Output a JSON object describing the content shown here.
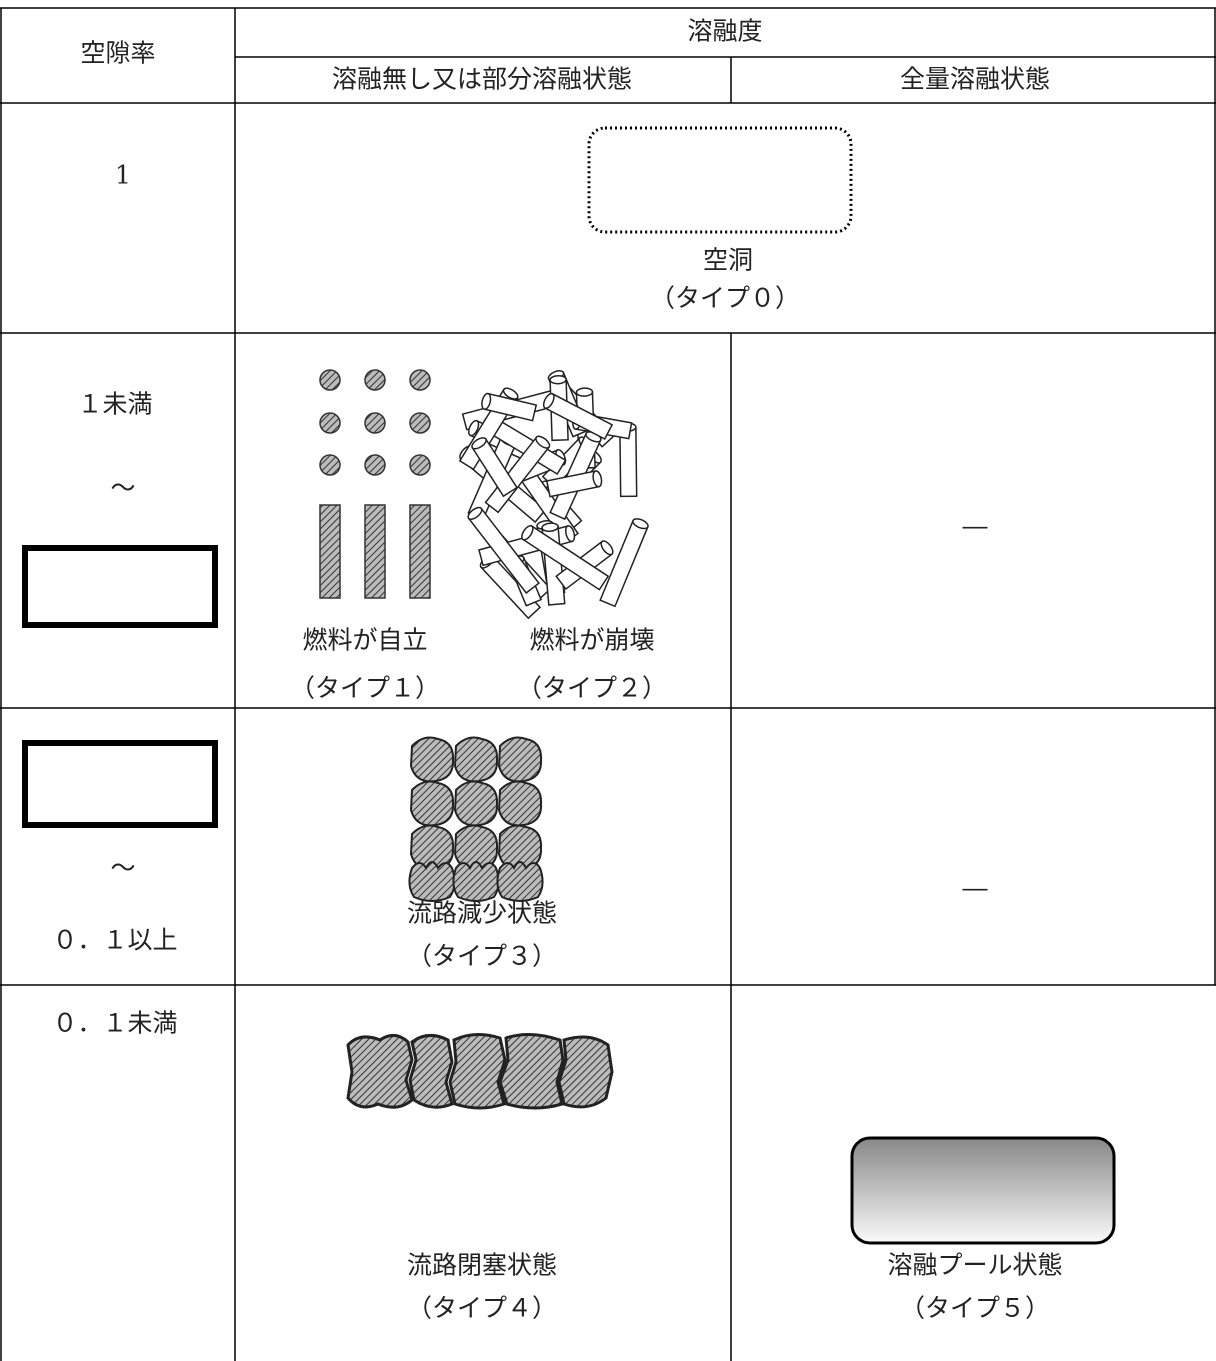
{
  "header": {
    "void_ratio": "空隙率",
    "melting_degree": "溶融度",
    "partial": "溶融無し又は部分溶融状態",
    "full": "全量溶融状態"
  },
  "rows": [
    {
      "void_ratio": [
        "1"
      ],
      "merged": {
        "label": "空洞",
        "type": "（タイプ０）"
      }
    },
    {
      "void_ratio": [
        "１未満",
        "～"
      ],
      "partial": [
        {
          "label": "燃料が自立",
          "type": "（タイプ１）"
        },
        {
          "label": "燃料が崩壊",
          "type": "（タイプ２）"
        }
      ],
      "full": "―"
    },
    {
      "void_ratio": [
        "～",
        "０．１以上"
      ],
      "partial": [
        {
          "label": "流路減少状態",
          "type": "（タイプ３）"
        }
      ],
      "full": "―"
    },
    {
      "void_ratio": [
        "０．１未満"
      ],
      "partial": [
        {
          "label": "流路閉塞状態",
          "type": "（タイプ４）"
        }
      ],
      "full": {
        "label": "溶融プール状態",
        "type": "（タイプ５）"
      }
    }
  ]
}
